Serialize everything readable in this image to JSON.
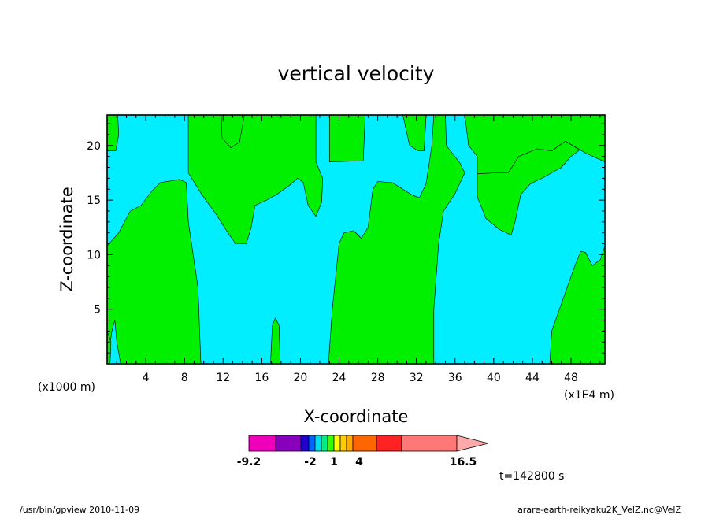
{
  "chart_data": {
    "type": "contour",
    "title": "vertical velocity",
    "xlabel": "X-coordinate",
    "ylabel": "Z-coordinate",
    "x_unit_left": "(x1000 m)",
    "x_unit_right": "(x1E4 m)",
    "xlim": [
      0,
      51.5
    ],
    "ylim": [
      0,
      22.8
    ],
    "xticks": [
      4,
      8,
      12,
      16,
      20,
      24,
      28,
      32,
      36,
      40,
      44,
      48
    ],
    "yticks": [
      5,
      10,
      15,
      20
    ],
    "background_field_color": "#00eeff",
    "positive_field_color": "#00f000",
    "regions_green": [
      {
        "name": "left-top",
        "points": [
          [
            0,
            19.5
          ],
          [
            0.9,
            19.5
          ],
          [
            1.2,
            21
          ],
          [
            1.1,
            22.8
          ],
          [
            0,
            22.8
          ]
        ]
      },
      {
        "name": "left-bottom",
        "points": [
          [
            0,
            0
          ],
          [
            0,
            10.8
          ],
          [
            1.2,
            12
          ],
          [
            2.4,
            14
          ],
          [
            3.5,
            14.5
          ],
          [
            4.6,
            15.8
          ],
          [
            5.5,
            16.6
          ],
          [
            7.5,
            16.9
          ],
          [
            8.2,
            16.6
          ],
          [
            8.4,
            13
          ],
          [
            9.4,
            7
          ],
          [
            9.7,
            0
          ],
          [
            1.4,
            0
          ],
          [
            1,
            2
          ],
          [
            0.8,
            4
          ],
          [
            0.5,
            3
          ],
          [
            0,
            0
          ]
        ]
      },
      {
        "name": "left-bottom-notch",
        "points": [
          [
            0,
            0
          ],
          [
            0.3,
            0
          ],
          [
            0.4,
            2
          ],
          [
            0,
            3
          ]
        ]
      },
      {
        "name": "center-top",
        "points": [
          [
            8.4,
            22.8
          ],
          [
            8.4,
            17.5
          ],
          [
            9.8,
            15.5
          ],
          [
            11.2,
            13.8
          ],
          [
            12.5,
            12
          ],
          [
            13.3,
            11
          ],
          [
            14.4,
            11
          ],
          [
            14.9,
            12.5
          ],
          [
            15.3,
            14.5
          ],
          [
            16.5,
            15
          ],
          [
            17.5,
            15.5
          ],
          [
            18.8,
            16.3
          ],
          [
            19.7,
            17
          ],
          [
            20.3,
            16.6
          ],
          [
            20.8,
            14.5
          ],
          [
            21.6,
            13.5
          ],
          [
            22.2,
            14.8
          ],
          [
            22.3,
            17
          ],
          [
            21.6,
            18.5
          ],
          [
            21.6,
            22.8
          ]
        ]
      },
      {
        "name": "center-top-notch",
        "points": [
          [
            11.8,
            22.8
          ],
          [
            11.9,
            20.7
          ],
          [
            12.8,
            19.8
          ],
          [
            13.7,
            20.3
          ],
          [
            14.2,
            22.8
          ]
        ]
      },
      {
        "name": "top-strip",
        "points": [
          [
            23,
            22.8
          ],
          [
            23,
            18.5
          ],
          [
            26.5,
            18.6
          ],
          [
            26.7,
            22.8
          ]
        ]
      },
      {
        "name": "center-bottom",
        "points": [
          [
            22.9,
            0
          ],
          [
            23.3,
            5
          ],
          [
            24,
            11
          ],
          [
            24.5,
            12
          ],
          [
            25.5,
            12.2
          ],
          [
            26.3,
            11.5
          ],
          [
            27,
            12.5
          ],
          [
            27.5,
            16
          ],
          [
            28,
            16.7
          ],
          [
            29.5,
            16.6
          ],
          [
            31.5,
            15.5
          ],
          [
            32.3,
            15.2
          ],
          [
            33,
            16.5
          ],
          [
            33.6,
            20
          ],
          [
            33.8,
            22.8
          ],
          [
            35,
            22.8
          ],
          [
            35.1,
            20
          ],
          [
            36.5,
            18.4
          ],
          [
            37,
            17.5
          ],
          [
            36,
            15.6
          ],
          [
            34.8,
            14
          ],
          [
            34.3,
            11
          ],
          [
            33.8,
            5
          ],
          [
            33.8,
            0
          ]
        ]
      },
      {
        "name": "center-top-finger",
        "points": [
          [
            30.6,
            22.8
          ],
          [
            31.3,
            20
          ],
          [
            32.2,
            19.5
          ],
          [
            32.8,
            19.5
          ],
          [
            33,
            22.8
          ]
        ]
      },
      {
        "name": "right-mid",
        "points": [
          [
            38.3,
            17.4
          ],
          [
            40.2,
            17.5
          ],
          [
            41.5,
            17.5
          ],
          [
            42.6,
            19
          ],
          [
            43.4,
            19.3
          ],
          [
            44.5,
            19.7
          ],
          [
            46,
            19.5
          ],
          [
            47.4,
            20.4
          ],
          [
            48,
            20.1
          ],
          [
            49.5,
            19.3
          ],
          [
            51.5,
            18.5
          ],
          [
            51.5,
            22.8
          ],
          [
            37,
            22.8
          ],
          [
            37.4,
            20
          ],
          [
            38.3,
            19
          ]
        ]
      },
      {
        "name": "right-mid-blob",
        "points": [
          [
            38.3,
            17.4
          ],
          [
            38.3,
            15.3
          ],
          [
            39.2,
            13.3
          ],
          [
            40.6,
            12.3
          ],
          [
            41.8,
            11.8
          ],
          [
            42.2,
            13
          ],
          [
            42.8,
            15.5
          ],
          [
            43.8,
            16.5
          ],
          [
            45,
            17
          ],
          [
            46,
            17.5
          ],
          [
            47,
            18
          ],
          [
            48,
            19
          ],
          [
            48.9,
            19.6
          ],
          [
            47.4,
            20.4
          ],
          [
            46,
            19.5
          ],
          [
            44.5,
            19.7
          ],
          [
            43.4,
            19.3
          ],
          [
            42.6,
            19
          ],
          [
            41.5,
            17.5
          ],
          [
            40.2,
            17.5
          ]
        ]
      },
      {
        "name": "right-bottom",
        "points": [
          [
            45.8,
            0
          ],
          [
            46,
            3
          ],
          [
            46.8,
            5
          ],
          [
            47.6,
            7
          ],
          [
            48.4,
            9
          ],
          [
            49,
            10.3
          ],
          [
            49.5,
            10.2
          ],
          [
            50.2,
            9
          ],
          [
            51,
            9.5
          ],
          [
            51.5,
            10.8
          ],
          [
            51.5,
            0
          ]
        ]
      },
      {
        "name": "small-spike",
        "points": [
          [
            16.9,
            0
          ],
          [
            17.1,
            3.5
          ],
          [
            17.4,
            4.2
          ],
          [
            17.8,
            3.5
          ],
          [
            17.9,
            0
          ]
        ]
      }
    ],
    "colorbar": {
      "colors": [
        "#ee00bb",
        "#8800bb",
        "#2200cc",
        "#0066ff",
        "#00ddee",
        "#00ee88",
        "#33ff00",
        "#ffff00",
        "#ffcc00",
        "#ffaa00",
        "#ff6600",
        "#ff2222",
        "#ff7777"
      ],
      "tick_labels": [
        "-9.2",
        "-2",
        "1",
        "4",
        "16.5"
      ],
      "arrow_color": "#ffaaaa"
    },
    "time_label": "t=142800 s"
  },
  "footer": {
    "left": "/usr/bin/gpview   2010-11-09",
    "right": "arare-earth-reikyaku2K_VelZ.nc@VelZ"
  }
}
